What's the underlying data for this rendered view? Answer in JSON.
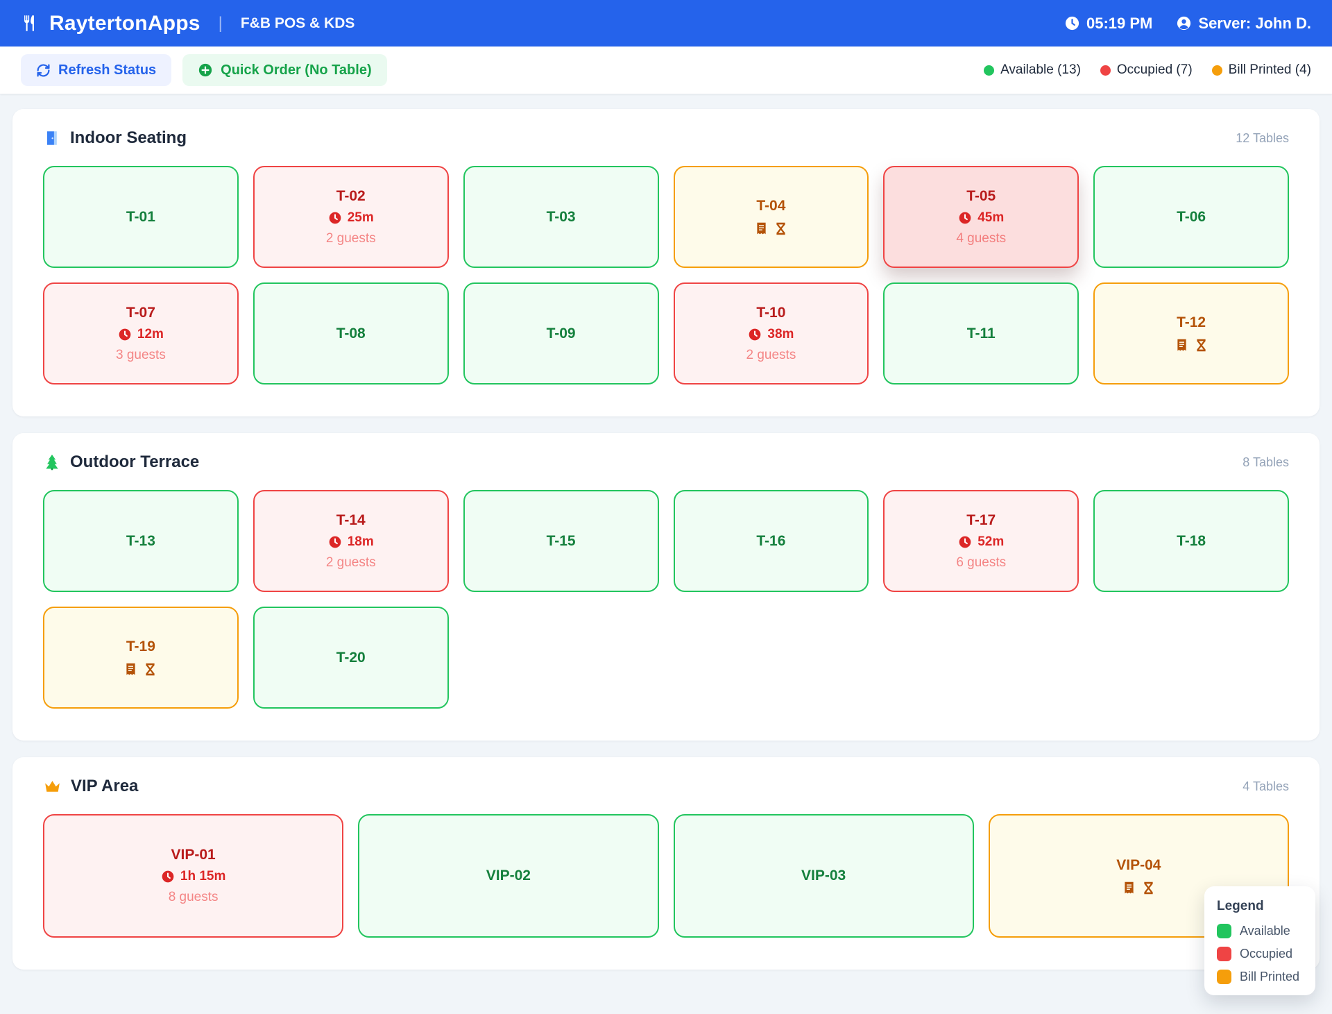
{
  "header": {
    "brand": "RaytertonApps",
    "divider": "|",
    "subtitle": "F&B POS & KDS",
    "time": "05:19 PM",
    "server": "Server: John D."
  },
  "toolbar": {
    "refresh_label": "Refresh Status",
    "quick_order_label": "Quick Order (No Table)",
    "status_summary": [
      {
        "label": "Available (13)",
        "color": "#22c55e"
      },
      {
        "label": "Occupied (7)",
        "color": "#ef4444"
      },
      {
        "label": "Bill Printed (4)",
        "color": "#f59e0b"
      }
    ]
  },
  "sections": [
    {
      "id": "indoor-seating",
      "icon": "door-icon",
      "title": "Indoor Seating",
      "count": "12 Tables",
      "columns": 6,
      "tables": [
        {
          "name": "T-01",
          "status": "available"
        },
        {
          "name": "T-02",
          "status": "occupied",
          "time": "25m",
          "guests": "2 guests"
        },
        {
          "name": "T-03",
          "status": "available"
        },
        {
          "name": "T-04",
          "status": "bill"
        },
        {
          "name": "T-05",
          "status": "occupied",
          "time": "45m",
          "guests": "4 guests",
          "highlighted": true
        },
        {
          "name": "T-06",
          "status": "available"
        },
        {
          "name": "T-07",
          "status": "occupied",
          "time": "12m",
          "guests": "3 guests"
        },
        {
          "name": "T-08",
          "status": "available"
        },
        {
          "name": "T-09",
          "status": "available"
        },
        {
          "name": "T-10",
          "status": "occupied",
          "time": "38m",
          "guests": "2 guests"
        },
        {
          "name": "T-11",
          "status": "available"
        },
        {
          "name": "T-12",
          "status": "bill"
        }
      ]
    },
    {
      "id": "outdoor-terrace",
      "icon": "tree-icon",
      "title": "Outdoor Terrace",
      "count": "8 Tables",
      "columns": 6,
      "tables": [
        {
          "name": "T-13",
          "status": "available"
        },
        {
          "name": "T-14",
          "status": "occupied",
          "time": "18m",
          "guests": "2 guests"
        },
        {
          "name": "T-15",
          "status": "available"
        },
        {
          "name": "T-16",
          "status": "available"
        },
        {
          "name": "T-17",
          "status": "occupied",
          "time": "52m",
          "guests": "6 guests"
        },
        {
          "name": "T-18",
          "status": "available"
        },
        {
          "name": "T-19",
          "status": "bill"
        },
        {
          "name": "T-20",
          "status": "available"
        }
      ]
    },
    {
      "id": "vip-area",
      "icon": "crown-icon",
      "title": "VIP Area",
      "count": "4 Tables",
      "columns": 4,
      "tables": [
        {
          "name": "VIP-01",
          "status": "occupied",
          "time": "1h 15m",
          "guests": "8 guests"
        },
        {
          "name": "VIP-02",
          "status": "available"
        },
        {
          "name": "VIP-03",
          "status": "available"
        },
        {
          "name": "VIP-04",
          "status": "bill"
        }
      ]
    }
  ],
  "legend": {
    "title": "Legend",
    "items": [
      {
        "label": "Available",
        "color": "#22c55e"
      },
      {
        "label": "Occupied",
        "color": "#ef4444"
      },
      {
        "label": "Bill Printed",
        "color": "#f59e0b"
      }
    ]
  },
  "colors": {
    "header_bg": "#2563eb",
    "available_border": "#22c55e",
    "occupied_border": "#ef4444",
    "bill_border": "#f59e0b",
    "page_bg": "#f1f5f9"
  }
}
